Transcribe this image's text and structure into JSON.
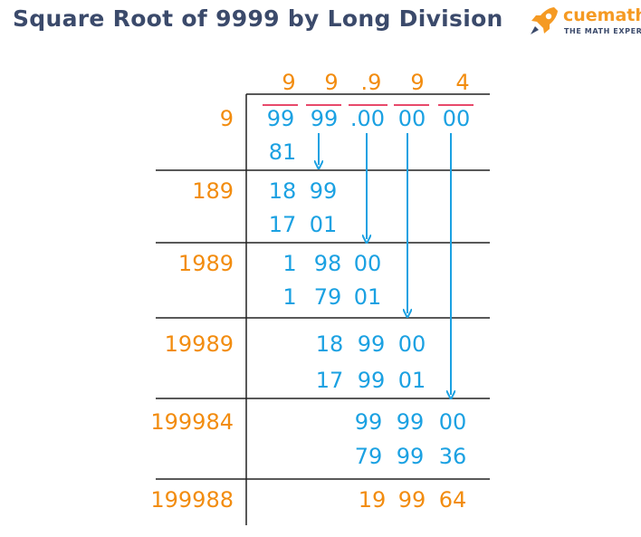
{
  "title": "Square Root of 9999 by Long Division",
  "logo": {
    "name": "cuemath",
    "tagline": "THE MATH EXPERT",
    "icon": "rocket-icon"
  },
  "colors": {
    "title": "#3b4a6b",
    "blue": "#1ba1e2",
    "orange": "#f28c0f",
    "bar": "#e8496b",
    "line": "#222222"
  },
  "quotient": [
    "9",
    "9",
    ".9",
    "9",
    "4"
  ],
  "dividend": [
    "99",
    "99",
    ".00",
    "00",
    "00"
  ],
  "divisors": [
    "9",
    "189",
    "1989",
    "19989",
    "199984",
    "199988"
  ],
  "steps": [
    {
      "subtract": "81"
    },
    {
      "remainder": [
        "18",
        "99"
      ],
      "subtract": [
        "17",
        "01"
      ]
    },
    {
      "remainder": [
        "1",
        "98",
        "00"
      ],
      "subtract": [
        "1",
        "79",
        "01"
      ]
    },
    {
      "remainder": [
        "18",
        "99",
        "00"
      ],
      "subtract": [
        "17",
        "99",
        "01"
      ]
    },
    {
      "remainder": [
        "99",
        "99",
        "00"
      ],
      "subtract": [
        "79",
        "99",
        "36"
      ]
    },
    {
      "remainder": [
        "19",
        "99",
        "64"
      ]
    }
  ]
}
